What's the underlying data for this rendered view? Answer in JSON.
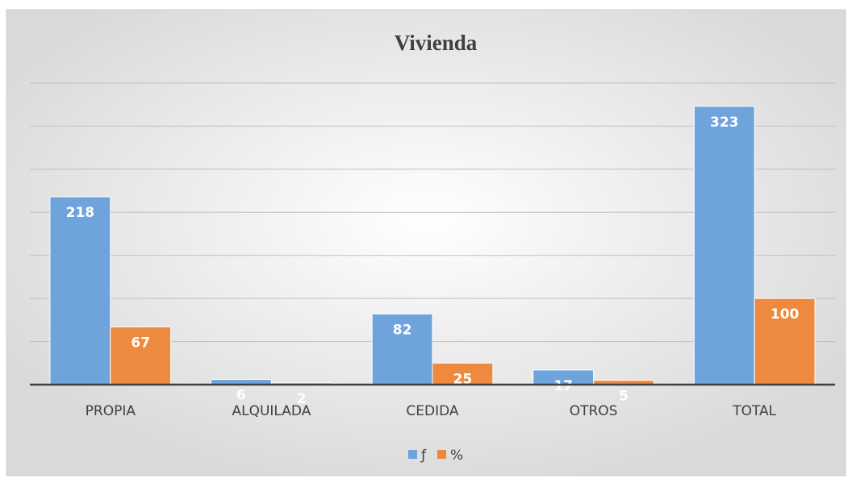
{
  "chart_data": {
    "type": "bar",
    "title": "Vivienda",
    "categories": [
      "PROPIA",
      "ALQUILADA",
      "CEDIDA",
      "OTROS",
      "TOTAL"
    ],
    "series": [
      {
        "name": "ƒ",
        "color": "#6fa3dc",
        "values": [
          218,
          6,
          82,
          17,
          323
        ]
      },
      {
        "name": "%",
        "color": "#ed8a3f",
        "values": [
          67,
          2,
          25,
          5,
          100
        ]
      }
    ],
    "ylim": [
      0,
      350
    ],
    "yticks": [
      0,
      50,
      100,
      150,
      200,
      250,
      300,
      350
    ],
    "grid": true
  }
}
